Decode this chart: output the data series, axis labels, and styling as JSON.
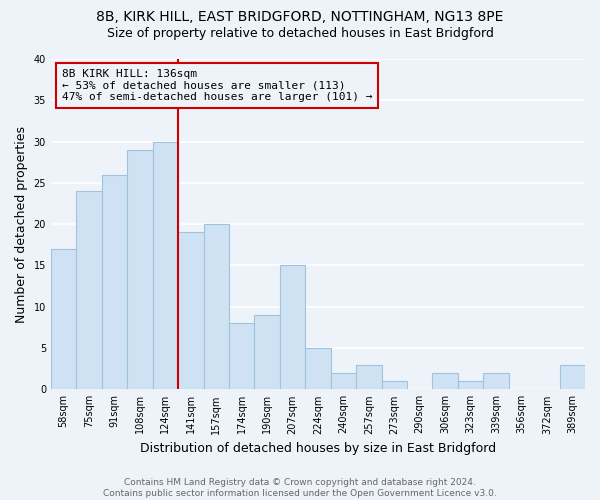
{
  "title": "8B, KIRK HILL, EAST BRIDGFORD, NOTTINGHAM, NG13 8PE",
  "subtitle": "Size of property relative to detached houses in East Bridgford",
  "xlabel": "Distribution of detached houses by size in East Bridgford",
  "ylabel": "Number of detached properties",
  "bar_labels": [
    "58sqm",
    "75sqm",
    "91sqm",
    "108sqm",
    "124sqm",
    "141sqm",
    "157sqm",
    "174sqm",
    "190sqm",
    "207sqm",
    "224sqm",
    "240sqm",
    "257sqm",
    "273sqm",
    "290sqm",
    "306sqm",
    "323sqm",
    "339sqm",
    "356sqm",
    "372sqm",
    "389sqm"
  ],
  "bar_values": [
    17,
    24,
    26,
    29,
    30,
    19,
    20,
    8,
    9,
    15,
    5,
    2,
    3,
    1,
    0,
    2,
    1,
    2,
    0,
    0,
    3
  ],
  "bar_color": "#cfe2f3",
  "bar_edge_color": "#9ec4dd",
  "highlight_line_color": "#cc0000",
  "highlight_line_at_index": 5,
  "annotation_box_edge": "#cc0000",
  "annotation_text_line1": "8B KIRK HILL: 136sqm",
  "annotation_text_line2": "← 53% of detached houses are smaller (113)",
  "annotation_text_line3": "47% of semi-detached houses are larger (101) →",
  "ylim": [
    0,
    40
  ],
  "yticks": [
    0,
    5,
    10,
    15,
    20,
    25,
    30,
    35,
    40
  ],
  "footer1": "Contains HM Land Registry data © Crown copyright and database right 2024.",
  "footer2": "Contains public sector information licensed under the Open Government Licence v3.0.",
  "bg_color": "#eef3f9",
  "grid_color": "#ffffff",
  "title_fontsize": 10,
  "subtitle_fontsize": 9,
  "axis_label_fontsize": 9,
  "tick_fontsize": 7,
  "annotation_fontsize": 8,
  "footer_fontsize": 6.5
}
